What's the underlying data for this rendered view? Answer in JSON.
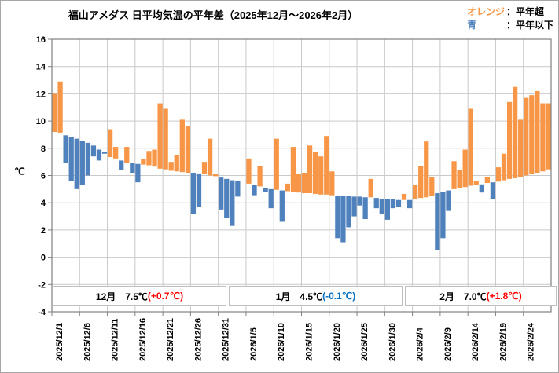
{
  "title": "福山アメダス 日平均気温の平年差（2025年12月～2026年2月）",
  "legend": {
    "above_key": "オレンジ",
    "above_desc": "：平年超",
    "below_key": "青",
    "below_desc": "：平年以下"
  },
  "colors": {
    "above": "#F79646",
    "below": "#4F81BD",
    "anomaly_plus": "#FF0000",
    "anomaly_minus": "#0070C0",
    "grid": "#c9c9c9",
    "frame": "#808080"
  },
  "y_axis": {
    "unit": "℃",
    "min": -4,
    "max": 16,
    "step": 2
  },
  "month_boxes": [
    {
      "label_text": "12月　7.5℃",
      "anomaly_text": "(+0.7℃)",
      "anomaly_color": "#FF0000"
    },
    {
      "label_text": "1月　4.5℃",
      "anomaly_text": "(-0.1℃)",
      "anomaly_color": "#0070C0"
    },
    {
      "label_text": "2月　7.0℃",
      "anomaly_text": "(+1.8℃)",
      "anomaly_color": "#FF0000"
    }
  ],
  "chart_data": {
    "type": "bar",
    "mode": "floating anomaly bars: each daily bar spans from the climatological normal to the actual daily mean; orange = above normal, blue = below normal",
    "title": "福山アメダス 日平均気温の平年差（2025年12月～2026年2月）",
    "ylabel": "℃",
    "ylim": [
      -4,
      16
    ],
    "ystep": 2,
    "grid": true,
    "xtick_every_days": 5,
    "xtick_labels": [
      "2025/12/1",
      "2025/12/6",
      "2025/12/11",
      "2025/12/16",
      "2025/12/21",
      "2025/12/26",
      "2025/12/31",
      "2026/1/5",
      "2026/1/10",
      "2026/1/15",
      "2026/1/20",
      "2026/1/25",
      "2026/1/30",
      "2026/2/4",
      "2026/2/9",
      "2026/2/14",
      "2026/2/19",
      "2026/2/24"
    ],
    "dates": [
      "2025/12/1",
      "2025/12/2",
      "2025/12/3",
      "2025/12/4",
      "2025/12/5",
      "2025/12/6",
      "2025/12/7",
      "2025/12/8",
      "2025/12/9",
      "2025/12/10",
      "2025/12/11",
      "2025/12/12",
      "2025/12/13",
      "2025/12/14",
      "2025/12/15",
      "2025/12/16",
      "2025/12/17",
      "2025/12/18",
      "2025/12/19",
      "2025/12/20",
      "2025/12/21",
      "2025/12/22",
      "2025/12/23",
      "2025/12/24",
      "2025/12/25",
      "2025/12/26",
      "2025/12/27",
      "2025/12/28",
      "2025/12/29",
      "2025/12/30",
      "2025/12/31",
      "2026/1/1",
      "2026/1/2",
      "2026/1/3",
      "2026/1/4",
      "2026/1/5",
      "2026/1/6",
      "2026/1/7",
      "2026/1/8",
      "2026/1/9",
      "2026/1/10",
      "2026/1/11",
      "2026/1/12",
      "2026/1/13",
      "2026/1/14",
      "2026/1/15",
      "2026/1/16",
      "2026/1/17",
      "2026/1/18",
      "2026/1/19",
      "2026/1/20",
      "2026/1/21",
      "2026/1/22",
      "2026/1/23",
      "2026/1/24",
      "2026/1/25",
      "2026/1/26",
      "2026/1/27",
      "2026/1/28",
      "2026/1/29",
      "2026/1/30",
      "2026/1/31",
      "2026/2/1",
      "2026/2/2",
      "2026/2/3",
      "2026/2/4",
      "2026/2/5",
      "2026/2/6",
      "2026/2/7",
      "2026/2/8",
      "2026/2/9",
      "2026/2/10",
      "2026/2/11",
      "2026/2/12",
      "2026/2/13",
      "2026/2/14",
      "2026/2/15",
      "2026/2/16",
      "2026/2/17",
      "2026/2/18",
      "2026/2/19",
      "2026/2/20",
      "2026/2/21",
      "2026/2/22",
      "2026/2/23",
      "2026/2/24",
      "2026/2/25",
      "2026/2/26",
      "2026/2/27",
      "2026/2/28"
    ],
    "normal": [
      9.2,
      9.15,
      8.95,
      8.85,
      8.7,
      8.55,
      8.4,
      8.2,
      7.9,
      7.7,
      7.35,
      7.25,
      7.1,
      6.95,
      6.9,
      6.85,
      6.8,
      6.75,
      6.65,
      6.5,
      6.45,
      6.35,
      6.3,
      6.25,
      6.2,
      6.2,
      6.15,
      6.1,
      6.0,
      5.95,
      5.85,
      5.75,
      5.65,
      5.6,
      5.5,
      5.4,
      5.3,
      5.2,
      5.1,
      5.0,
      4.95,
      4.9,
      4.85,
      4.8,
      4.75,
      4.7,
      4.7,
      4.65,
      4.6,
      4.6,
      4.55,
      4.5,
      4.5,
      4.5,
      4.45,
      4.45,
      4.4,
      4.4,
      4.35,
      4.3,
      4.3,
      4.25,
      4.2,
      4.2,
      4.2,
      4.25,
      4.35,
      4.4,
      4.5,
      4.7,
      4.8,
      4.9,
      5.0,
      5.1,
      5.15,
      5.25,
      5.3,
      5.35,
      5.45,
      5.5,
      5.55,
      5.65,
      5.75,
      5.8,
      5.9,
      6.0,
      6.1,
      6.2,
      6.3,
      6.45
    ],
    "actual": [
      12.0,
      12.9,
      6.9,
      5.6,
      5.0,
      5.3,
      6.0,
      7.4,
      7.1,
      7.6,
      9.4,
      8.1,
      6.4,
      8.1,
      6.2,
      5.5,
      7.2,
      7.8,
      7.9,
      11.3,
      10.9,
      7.0,
      7.5,
      10.1,
      9.6,
      3.2,
      3.7,
      7.0,
      8.7,
      6.1,
      3.5,
      2.9,
      2.3,
      4.45,
      5.5,
      7.25,
      4.55,
      6.7,
      4.8,
      3.6,
      8.7,
      2.6,
      5.4,
      8.1,
      6.1,
      6.2,
      8.2,
      7.7,
      7.4,
      8.9,
      6.3,
      1.4,
      1.1,
      2.2,
      3.0,
      3.8,
      2.8,
      5.75,
      3.6,
      3.2,
      2.75,
      3.6,
      3.7,
      4.65,
      3.6,
      5.3,
      6.7,
      8.5,
      5.9,
      0.5,
      1.4,
      3.4,
      7.05,
      6.4,
      7.9,
      10.9,
      5.6,
      4.75,
      5.9,
      4.3,
      6.6,
      7.6,
      11.4,
      12.5,
      10.1,
      11.7,
      11.9,
      12.2,
      11.3,
      11.3
    ],
    "legend_position": "top-right"
  }
}
